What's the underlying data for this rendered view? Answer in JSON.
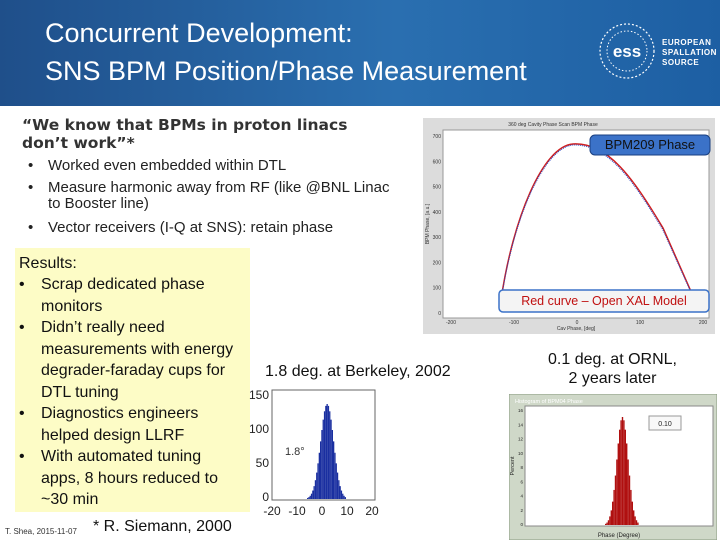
{
  "header": {
    "title_lines": [
      "Concurrent Development:",
      "SNS BPM Position/Phase Measurement"
    ],
    "logo": {
      "mark": "ess",
      "lines": [
        "EUROPEAN",
        "SPALLATION",
        "SOURCE"
      ]
    }
  },
  "quote": "“We know that BPMs in proton linacs don’t work”*",
  "bullets": [
    "Worked even embedded within DTL",
    "Measure harmonic away from RF (like @BNL Linac to Booster line)",
    "Vector receivers (I-Q at SNS): retain phase"
  ],
  "results": {
    "heading": "Results:",
    "items": [
      "Scrap dedicated phase monitors",
      "Didn’t really need measurements with energy degrader-faraday cups for DTL tuning",
      "Diagnostics engineers helped design LLRF",
      "With automated tuning apps, 8 hours reduced to ~30 min"
    ]
  },
  "citation": "* R. Siemann, 2000",
  "footer": "T. Shea, 2015-11-07",
  "plots": [
    {
      "panel_title": "360 deg Cavity Phase Scan BPM Phase",
      "label": "BPM209 Phase",
      "note": "Red curve – Open XAL Model",
      "xlabel": "Cav Phase, [deg]",
      "ylabel": "BPM Phase, [a.u.]",
      "xticks": [
        -200,
        -100,
        0,
        100,
        200
      ],
      "yticks": [
        0,
        100,
        200,
        300,
        400,
        500,
        600,
        700
      ]
    },
    {
      "caption": "1.8 deg. at Berkeley, 2002",
      "annotation": "1.8°",
      "xticks": [
        -20,
        -10,
        0,
        10,
        20
      ],
      "yticks": [
        0,
        50,
        100,
        150
      ]
    },
    {
      "caption_lines": [
        "0.1 deg. at ORNL,",
        "2 years later"
      ],
      "title": "Histogram of BPM04 Phase",
      "annotation": "0.10",
      "xlabel": "Phase (Degree)",
      "ylabel": "Percent",
      "yticks": [
        0,
        2,
        4,
        6,
        8,
        10,
        12,
        14,
        16
      ]
    }
  ]
}
